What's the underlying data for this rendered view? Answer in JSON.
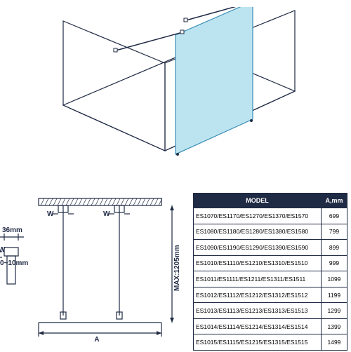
{
  "iso": {
    "panel_fill": "#bce4f0",
    "panel_stroke": "#3a8db5",
    "wall_stroke": "#1f2a44",
    "floor_stroke": "#1f2a44",
    "line_width": 1.2
  },
  "plan": {
    "stroke": "#1f2a44",
    "line_width": 1.2,
    "dim_36": "36mm",
    "dim_0_10": "0~10mm",
    "dim_max": "MAX:1205mm",
    "label_A": "A",
    "label_W": "W"
  },
  "table": {
    "header_bg": "#1f2a44",
    "border": "#1f2a44",
    "col_model": "MODEL",
    "col_a": "A,mm",
    "rows": [
      {
        "model": "ES1070/ES1170/ES1270/ES1370/ES1570",
        "a": "699"
      },
      {
        "model": "ES1080/ES1180/ES1280/ES1380/ES1580",
        "a": "799"
      },
      {
        "model": "ES1090/ES1190/ES1290/ES1390/ES1590",
        "a": "899"
      },
      {
        "model": "ES1010/ES1110/ES1210/ES1310/ES1510",
        "a": "999"
      },
      {
        "model": "ES1011/ES1111/ES1211/ES1311/ES1511",
        "a": "1099"
      },
      {
        "model": "ES1012/ES1112/ES1212/ES1312/ES1512",
        "a": "1199"
      },
      {
        "model": "ES1013/ES1113/ES1213/ES1313/ES1513",
        "a": "1299"
      },
      {
        "model": "ES1014/ES1114/ES1214/ES1314/ES1514",
        "a": "1399"
      },
      {
        "model": "ES1015/ES1115/ES1215/ES1315/ES1515",
        "a": "1499"
      }
    ]
  }
}
